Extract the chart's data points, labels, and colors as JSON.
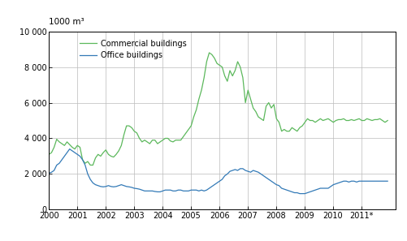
{
  "title_unit": "1000 m³",
  "legend_commercial": "Commercial buildings",
  "legend_office": "Office buildings",
  "color_commercial": "#5cb85c",
  "color_office": "#337ab7",
  "ylim": [
    0,
    10000
  ],
  "yticks": [
    0,
    2000,
    4000,
    6000,
    8000,
    10000
  ],
  "ytick_labels": [
    "0",
    "2 000",
    "4 000",
    "6 000",
    "8 000",
    "10 000"
  ],
  "xtick_labels": [
    "2000",
    "2001",
    "2002",
    "2003",
    "2004",
    "2005",
    "2006",
    "2007",
    "2008",
    "2009",
    "2010",
    "2011*"
  ],
  "background_color": "#ffffff",
  "commercial_data": [
    3100,
    3200,
    3500,
    3950,
    3800,
    3700,
    3600,
    3800,
    3650,
    3500,
    3400,
    3600,
    3500,
    2800,
    2600,
    2700,
    2500,
    2500,
    2900,
    3100,
    3000,
    3200,
    3350,
    3100,
    3000,
    2950,
    3100,
    3300,
    3600,
    4200,
    4700,
    4700,
    4600,
    4400,
    4300,
    4000,
    3800,
    3900,
    3800,
    3700,
    3900,
    3900,
    3700,
    3800,
    3900,
    4000,
    4000,
    3850,
    3800,
    3900,
    3900,
    3900,
    4100,
    4300,
    4500,
    4700,
    5200,
    5600,
    6200,
    6700,
    7400,
    8300,
    8800,
    8700,
    8500,
    8200,
    8100,
    8000,
    7500,
    7200,
    7800,
    7500,
    7800,
    8300,
    8000,
    7400,
    6000,
    6700,
    6200,
    5700,
    5500,
    5200,
    5100,
    5000,
    5800,
    6000,
    5700,
    5900,
    5100,
    4900,
    4400,
    4500,
    4400,
    4400,
    4600,
    4500,
    4400,
    4600,
    4700,
    4900,
    5100,
    5000,
    5000,
    4900,
    5000,
    5100,
    5000,
    5050,
    5100,
    5000,
    4900,
    5000,
    5050,
    5050,
    5100,
    5000,
    5000,
    5050,
    5000,
    5050,
    5100,
    5000,
    5000,
    5100,
    5050,
    5000,
    5050,
    5050,
    5100,
    5000,
    4900,
    5000
  ],
  "office_data": [
    2050,
    2100,
    2200,
    2500,
    2600,
    2800,
    3000,
    3200,
    3400,
    3300,
    3200,
    3100,
    3000,
    2800,
    2500,
    2000,
    1700,
    1500,
    1400,
    1350,
    1300,
    1280,
    1300,
    1350,
    1300,
    1280,
    1300,
    1350,
    1400,
    1350,
    1300,
    1280,
    1250,
    1200,
    1180,
    1150,
    1100,
    1050,
    1050,
    1050,
    1050,
    1020,
    1000,
    1000,
    1050,
    1100,
    1100,
    1100,
    1050,
    1050,
    1100,
    1100,
    1050,
    1050,
    1050,
    1100,
    1100,
    1100,
    1050,
    1100,
    1050,
    1100,
    1200,
    1300,
    1400,
    1500,
    1600,
    1700,
    1900,
    2000,
    2150,
    2200,
    2250,
    2200,
    2300,
    2300,
    2200,
    2150,
    2100,
    2200,
    2150,
    2100,
    2000,
    1900,
    1800,
    1700,
    1600,
    1500,
    1400,
    1350,
    1200,
    1150,
    1100,
    1050,
    1000,
    950,
    950,
    900,
    900,
    900,
    950,
    1000,
    1050,
    1100,
    1150,
    1200,
    1200,
    1200,
    1200,
    1300,
    1400,
    1450,
    1500,
    1550,
    1600,
    1600,
    1550,
    1600,
    1600,
    1550,
    1600,
    1600,
    1600,
    1600,
    1600,
    1600,
    1600,
    1600,
    1600,
    1600,
    1600,
    1600
  ]
}
